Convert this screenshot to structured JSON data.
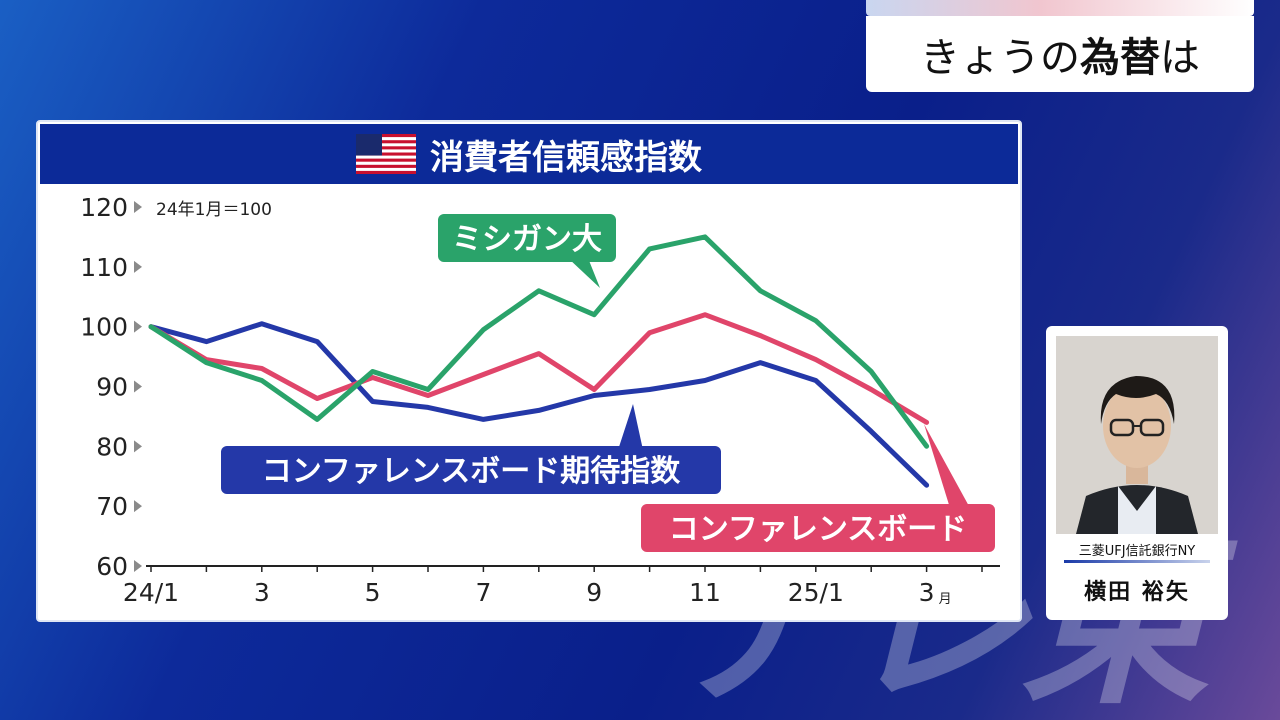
{
  "headline": {
    "normal": "きょうの",
    "bold": "為替",
    "suffix": "は"
  },
  "chart_data": {
    "type": "line",
    "title": "消費者信頼感指数",
    "unit_note": "24年1月＝100",
    "ylim": [
      60,
      120
    ],
    "yticks": [
      60,
      70,
      80,
      90,
      100,
      110,
      120
    ],
    "xlim": [
      0,
      15
    ],
    "x": [
      0,
      1,
      2,
      3,
      4,
      5,
      6,
      7,
      8,
      9,
      10,
      11,
      12,
      13,
      14
    ],
    "xtick_labels": [
      {
        "x": 0,
        "label": "24/1"
      },
      {
        "x": 2,
        "label": "3"
      },
      {
        "x": 4,
        "label": "5"
      },
      {
        "x": 6,
        "label": "7"
      },
      {
        "x": 8,
        "label": "9"
      },
      {
        "x": 10,
        "label": "11"
      },
      {
        "x": 12,
        "label": "25/1"
      },
      {
        "x": 14,
        "label": "3",
        "suffix": "月"
      }
    ],
    "series": [
      {
        "name": "ミシガン大",
        "color": "#2aa36a",
        "values": [
          100,
          94,
          91,
          84.5,
          92.5,
          89.5,
          99.5,
          106,
          102,
          113,
          115,
          106,
          101,
          92.5,
          80
        ]
      },
      {
        "name": "コンファレンスボード",
        "color": "#e0456a",
        "values": [
          100,
          94.5,
          93,
          88,
          91.5,
          88.5,
          92,
          95.5,
          89.5,
          99,
          102,
          98.5,
          94.5,
          89.5,
          84
        ]
      },
      {
        "name": "コンファレンスボード期待指数",
        "color": "#2438a8",
        "values": [
          100,
          97.5,
          100.5,
          97.5,
          87.5,
          86.5,
          84.5,
          86,
          88.5,
          89.5,
          91,
          94,
          91,
          82.5,
          73.5
        ]
      }
    ]
  },
  "profile": {
    "company": "三菱UFJ信託銀行NY",
    "name": "横田 裕矢"
  },
  "watermark": "テレ東"
}
